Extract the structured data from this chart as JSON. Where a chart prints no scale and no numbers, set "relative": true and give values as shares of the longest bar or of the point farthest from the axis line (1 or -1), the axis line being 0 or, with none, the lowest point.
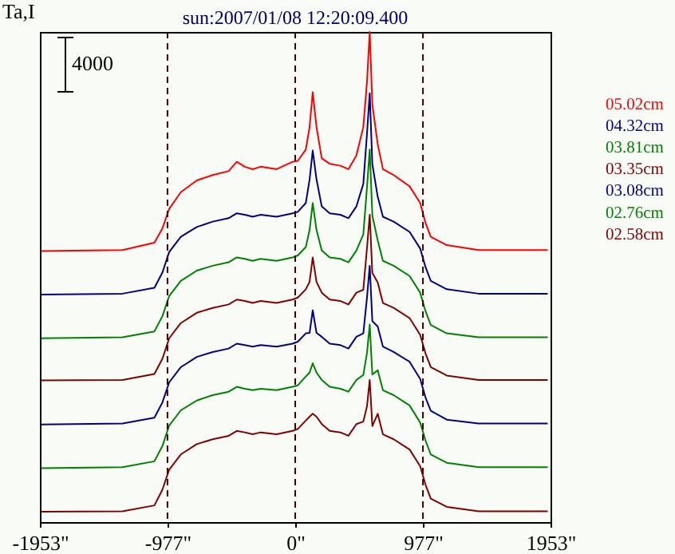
{
  "chart_data": {
    "type": "line",
    "title": "sun:2007/01/08 12:20:09.400",
    "ylabel": "Ta,I",
    "relative": true,
    "annotations": [
      "4000"
    ],
    "x": [
      -1944,
      -1321,
      -1077,
      -1016,
      -964,
      -875,
      -753,
      -631,
      -509,
      -447,
      -386,
      -325,
      -264,
      -142,
      -20,
      20,
      81,
      110,
      134,
      163,
      203,
      264,
      346,
      407,
      468,
      521,
      549,
      570,
      590,
      631,
      671,
      753,
      875,
      956,
      997,
      1037,
      1159,
      1403,
      1931
    ],
    "xlim": [
      -1953,
      1953
    ],
    "xticks": [
      {
        "value": -1953,
        "label": "-1953\""
      },
      {
        "value": -977,
        "label": "-977\""
      },
      {
        "value": 0,
        "label": "0\""
      },
      {
        "value": 977,
        "label": "977\""
      },
      {
        "value": 1953,
        "label": "1953\""
      }
    ],
    "series": [
      {
        "name": "05.02cm",
        "color": "#ff0000",
        "values": [
          0.553,
          0.555,
          0.57,
          0.599,
          0.639,
          0.673,
          0.697,
          0.708,
          0.716,
          0.735,
          0.725,
          0.72,
          0.725,
          0.72,
          0.735,
          0.737,
          0.76,
          0.806,
          0.877,
          0.806,
          0.742,
          0.731,
          0.727,
          0.72,
          0.748,
          0.806,
          0.898,
          1,
          0.852,
          0.771,
          0.72,
          0.708,
          0.685,
          0.651,
          0.61,
          0.582,
          0.565,
          0.555,
          0.555
        ]
      },
      {
        "name": "04.32cm",
        "color": "#000080",
        "values": [
          0.464,
          0.466,
          0.478,
          0.509,
          0.551,
          0.582,
          0.602,
          0.613,
          0.62,
          0.63,
          0.627,
          0.623,
          0.627,
          0.623,
          0.63,
          0.633,
          0.651,
          0.699,
          0.758,
          0.699,
          0.644,
          0.63,
          0.627,
          0.62,
          0.644,
          0.69,
          0.792,
          0.875,
          0.73,
          0.664,
          0.623,
          0.613,
          0.592,
          0.558,
          0.52,
          0.492,
          0.475,
          0.466,
          0.466
        ]
      },
      {
        "name": "03.81cm",
        "color": "#008000",
        "values": [
          0.375,
          0.377,
          0.389,
          0.42,
          0.461,
          0.492,
          0.513,
          0.523,
          0.53,
          0.54,
          0.537,
          0.533,
          0.537,
          0.533,
          0.54,
          0.544,
          0.561,
          0.596,
          0.651,
          0.596,
          0.554,
          0.54,
          0.537,
          0.53,
          0.554,
          0.587,
          0.683,
          0.76,
          0.625,
          0.575,
          0.533,
          0.523,
          0.502,
          0.468,
          0.43,
          0.402,
          0.385,
          0.377,
          0.377
        ]
      },
      {
        "name": "03.35cm",
        "color": "#800000",
        "values": [
          0.289,
          0.29,
          0.302,
          0.333,
          0.375,
          0.406,
          0.427,
          0.437,
          0.444,
          0.454,
          0.451,
          0.447,
          0.451,
          0.447,
          0.454,
          0.458,
          0.475,
          0.49,
          0.54,
          0.49,
          0.468,
          0.454,
          0.451,
          0.444,
          0.468,
          0.474,
          0.559,
          0.627,
          0.508,
          0.489,
          0.447,
          0.437,
          0.416,
          0.382,
          0.344,
          0.316,
          0.299,
          0.29,
          0.29
        ]
      },
      {
        "name": "03.08cm",
        "color": "#000080",
        "values": [
          0.199,
          0.201,
          0.213,
          0.244,
          0.285,
          0.316,
          0.337,
          0.347,
          0.354,
          0.364,
          0.361,
          0.358,
          0.361,
          0.358,
          0.364,
          0.368,
          0.385,
          0.386,
          0.432,
          0.386,
          0.378,
          0.364,
          0.361,
          0.354,
          0.378,
          0.385,
          0.458,
          0.523,
          0.41,
          0.399,
          0.358,
          0.347,
          0.327,
          0.292,
          0.254,
          0.227,
          0.209,
          0.201,
          0.201
        ]
      },
      {
        "name": "02.76cm",
        "color": "#008000",
        "values": [
          0.11,
          0.112,
          0.124,
          0.155,
          0.197,
          0.228,
          0.248,
          0.259,
          0.266,
          0.276,
          0.272,
          0.269,
          0.272,
          0.269,
          0.276,
          0.279,
          0.297,
          0.305,
          0.324,
          0.305,
          0.29,
          0.276,
          0.272,
          0.266,
          0.29,
          0.3,
          0.345,
          0.403,
          0.301,
          0.31,
          0.269,
          0.259,
          0.238,
          0.203,
          0.166,
          0.138,
          0.121,
          0.112,
          0.112
        ]
      },
      {
        "name": "02.58cm",
        "color": "#800000",
        "values": [
          0.021,
          0.022,
          0.034,
          0.066,
          0.107,
          0.138,
          0.159,
          0.169,
          0.176,
          0.186,
          0.183,
          0.179,
          0.183,
          0.179,
          0.186,
          0.19,
          0.207,
          0.215,
          0.221,
          0.215,
          0.2,
          0.186,
          0.183,
          0.176,
          0.2,
          0.205,
          0.236,
          0.29,
          0.196,
          0.221,
          0.179,
          0.169,
          0.148,
          0.114,
          0.076,
          0.048,
          0.031,
          0.022,
          0.022
        ]
      }
    ],
    "ref_lines": [
      {
        "axis": "x",
        "value": -977,
        "color": "#400000",
        "line_style": "dashed"
      },
      {
        "axis": "x",
        "value": 0,
        "color": "#400000",
        "line_style": "dashed"
      },
      {
        "axis": "x",
        "value": 977,
        "color": "#400000",
        "line_style": "dashed"
      }
    ],
    "legend": "right",
    "grid": false,
    "marker": "none",
    "line_style": "solid"
  }
}
